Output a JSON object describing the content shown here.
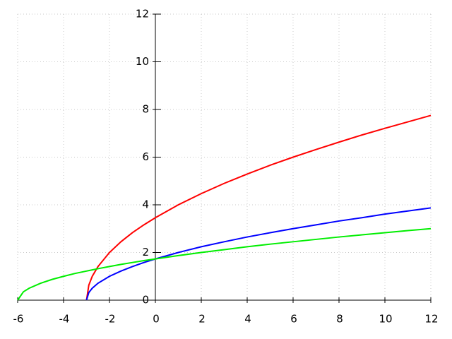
{
  "chart_data": {
    "type": "line",
    "x": [
      -6,
      -5.75,
      -5.5,
      -5,
      -4.5,
      -4,
      -3.5,
      -3,
      -2.9,
      -2.75,
      -2.5,
      -2,
      -1.5,
      -1,
      -0.5,
      0,
      1,
      2,
      3,
      4,
      5,
      6,
      7,
      8,
      9,
      10,
      11,
      12
    ],
    "series": [
      {
        "color": "#ff0000",
        "values": [
          null,
          null,
          null,
          null,
          null,
          null,
          null,
          0,
          0.63,
          1,
          1.41,
          2,
          2.45,
          2.83,
          3.16,
          3.46,
          4,
          4.47,
          4.9,
          5.29,
          5.66,
          6,
          6.32,
          6.63,
          6.93,
          7.21,
          7.48,
          7.75
        ]
      },
      {
        "color": "#0000ff",
        "values": [
          null,
          null,
          null,
          null,
          null,
          null,
          null,
          0,
          0.32,
          0.5,
          0.71,
          1,
          1.22,
          1.41,
          1.58,
          1.73,
          2,
          2.24,
          2.45,
          2.65,
          2.83,
          3,
          3.16,
          3.32,
          3.46,
          3.61,
          3.74,
          3.87
        ]
      },
      {
        "color": "#00ee00",
        "values": [
          0,
          0.35,
          0.5,
          0.71,
          0.87,
          1,
          1.12,
          1.22,
          1.24,
          1.27,
          1.32,
          1.41,
          1.5,
          1.58,
          1.66,
          1.73,
          1.87,
          2,
          2.12,
          2.24,
          2.35,
          2.45,
          2.55,
          2.65,
          2.74,
          2.83,
          2.92,
          3
        ]
      }
    ],
    "xlim": [
      -6,
      12
    ],
    "xticks": [
      -6,
      -4,
      -2,
      0,
      2,
      4,
      6,
      8,
      10,
      12
    ],
    "ylim": [
      0,
      12
    ],
    "yticks": [
      0,
      2,
      4,
      6,
      8,
      10,
      12
    ],
    "grid": true
  }
}
